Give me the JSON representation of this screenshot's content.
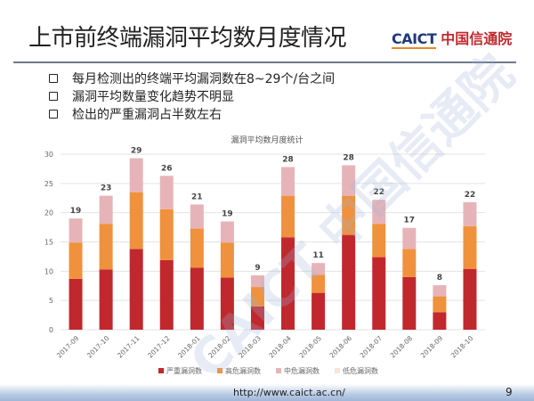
{
  "slide": {
    "title": "上市前终端漏洞平均数月度情况",
    "logo_en": "CAICT",
    "logo_cn": "中国信通院",
    "watermark": "CAICT 中国信通院",
    "bullets": [
      "每月检测出的终端平均漏洞数在8~29个/台之间",
      "漏洞平均数量变化趋势不明显",
      "检出的严重漏洞占半数左右"
    ],
    "footer_url": "http://www.caict.ac.cn/",
    "page_number": "9"
  },
  "chart_data": {
    "type": "bar",
    "stacked": true,
    "title": "漏洞平均数月度统计",
    "xlabel": "",
    "ylabel": "",
    "ylim": [
      0,
      30
    ],
    "yticks": [
      0,
      5,
      10,
      15,
      20,
      25,
      30
    ],
    "grid": true,
    "legend_position": "bottom",
    "categories": [
      "2017-09",
      "2017-10",
      "2017-11",
      "2017-12",
      "2018-01",
      "2018-02",
      "2018-03",
      "2018-04",
      "2018-05",
      "2018-06",
      "2018-07",
      "2018-08",
      "2018-09",
      "2018-10"
    ],
    "totals": [
      19,
      23,
      29,
      26,
      21,
      19,
      9,
      28,
      11,
      28,
      22,
      17,
      8,
      22
    ],
    "series": [
      {
        "name": "严重漏洞数",
        "color": "#c0282e",
        "values": [
          8.7,
          10.3,
          13.8,
          11.9,
          10.6,
          8.9,
          4.0,
          15.8,
          6.3,
          16.2,
          12.4,
          9.0,
          3.0,
          10.4
        ]
      },
      {
        "name": "高危漏洞数",
        "color": "#f0913e",
        "values": [
          6.2,
          7.8,
          9.7,
          8.7,
          6.7,
          6.0,
          3.3,
          7.1,
          3.1,
          6.7,
          5.7,
          4.8,
          2.7,
          7.3
        ]
      },
      {
        "name": "中危漏洞数",
        "color": "#e6b4b8",
        "values": [
          4.1,
          4.8,
          5.8,
          5.7,
          4.1,
          3.6,
          2.0,
          4.9,
          2.0,
          5.2,
          4.1,
          3.6,
          1.9,
          4.1
        ]
      },
      {
        "name": "低危漏洞数",
        "color": "#f9e3d6",
        "values": [
          0,
          0,
          0,
          0,
          0,
          0,
          0,
          0,
          0,
          0,
          0,
          0,
          0,
          0
        ]
      }
    ]
  }
}
